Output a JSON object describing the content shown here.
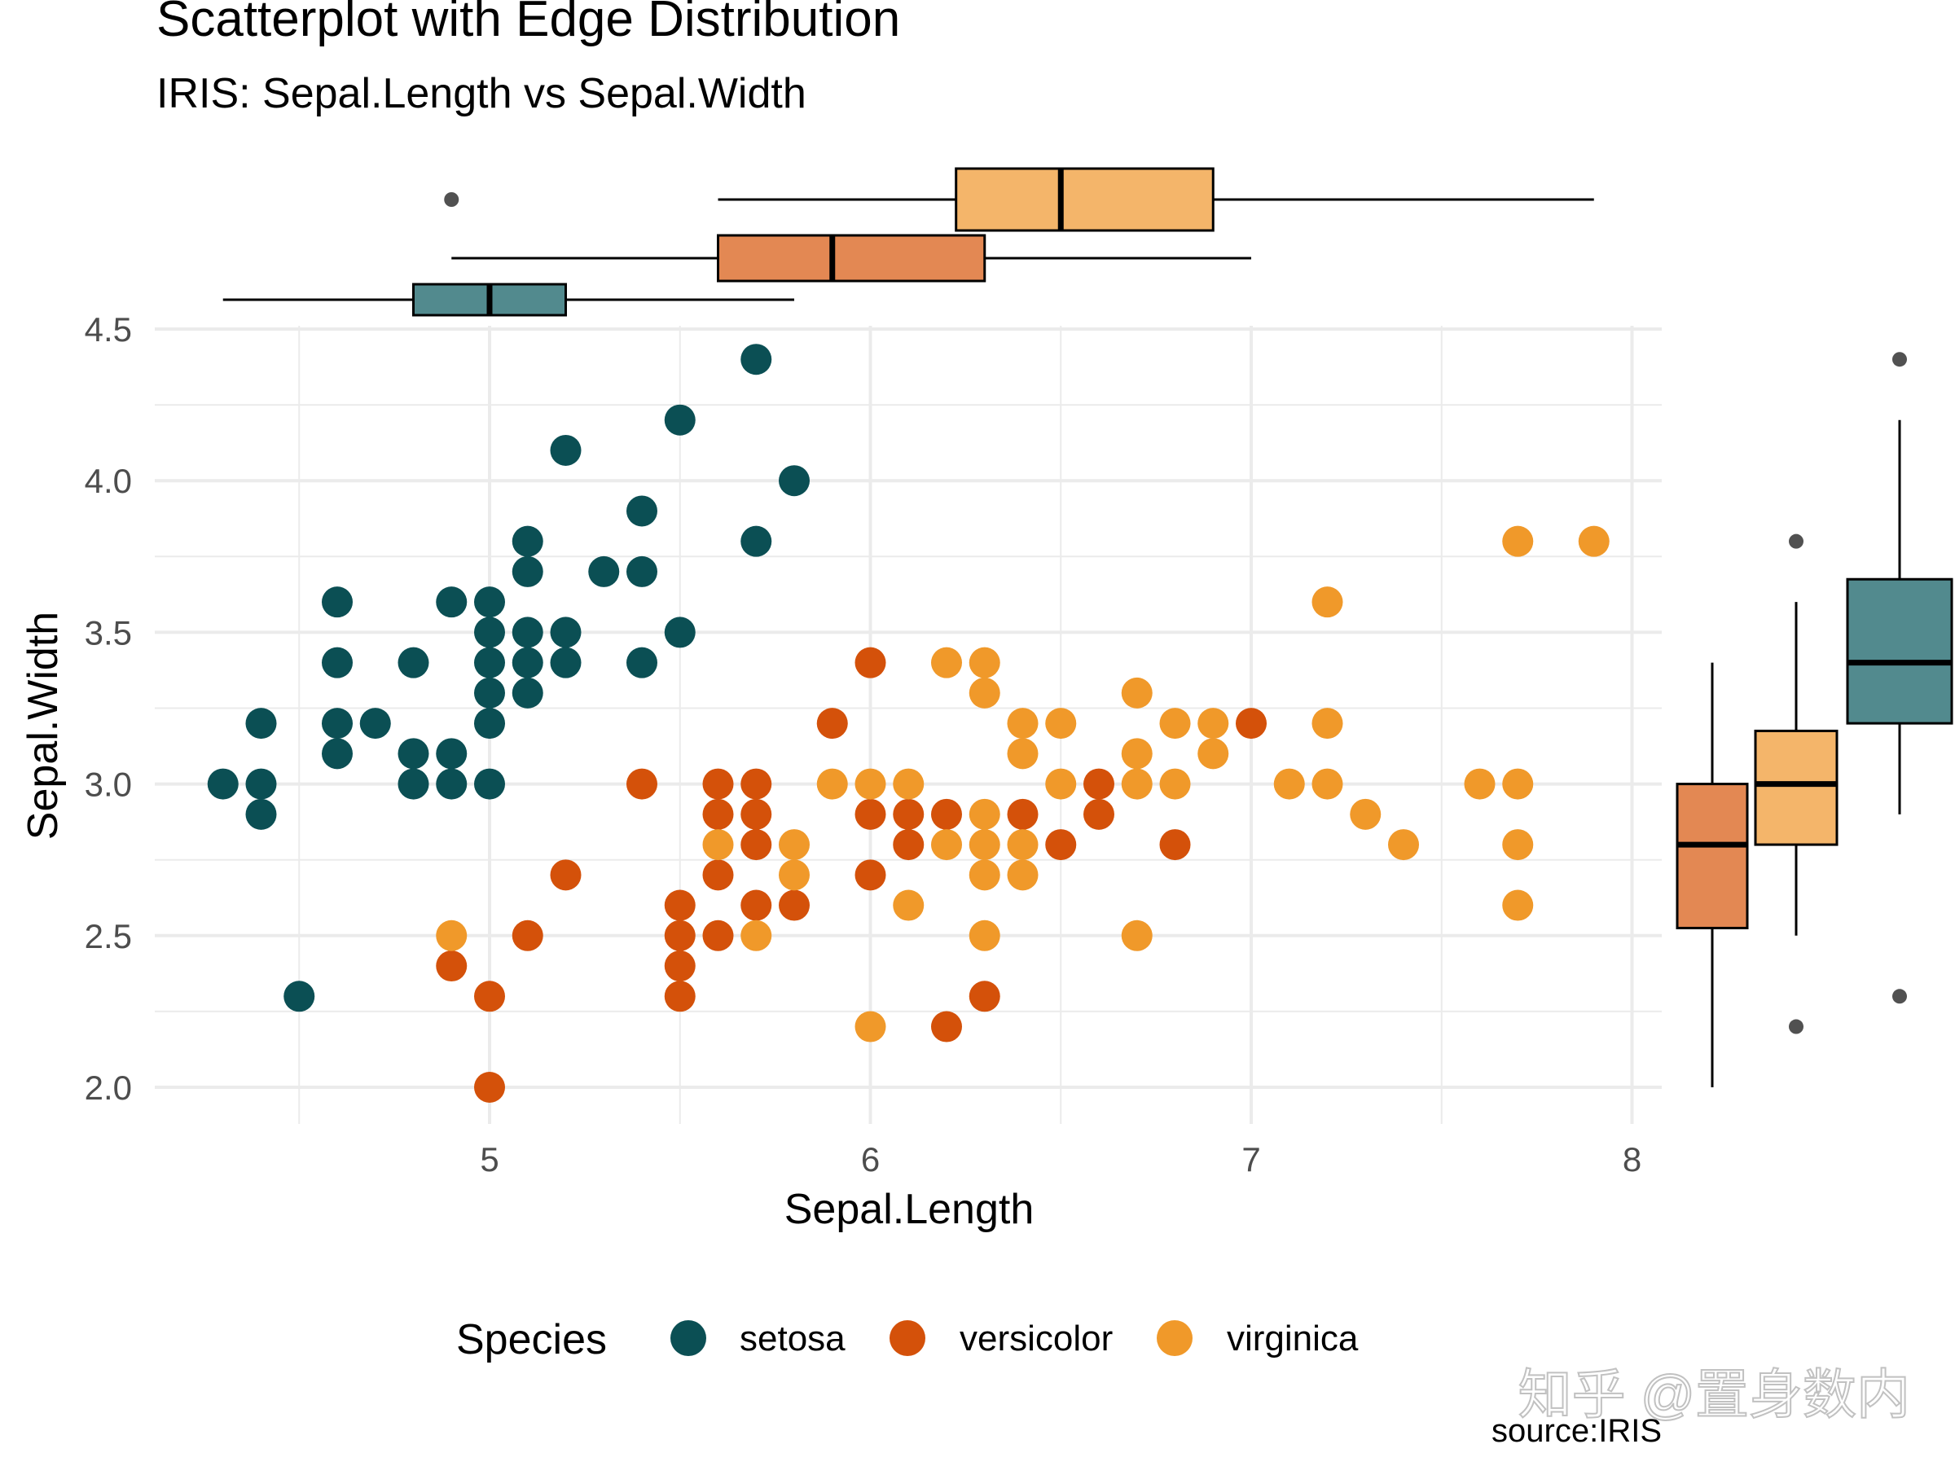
{
  "chart_data": {
    "type": "scatter",
    "title": "Scatterplot with Edge Distribution",
    "subtitle": "IRIS: Sepal.Length vs Sepal.Width",
    "caption": "source:IRIS",
    "watermark": "知乎 @置身数内",
    "xlabel": "Sepal.Length",
    "ylabel": "Sepal.Width",
    "xlim": [
      4.2,
      8.08
    ],
    "ylim": [
      1.9,
      4.6
    ],
    "x_ticks": [
      "5",
      "6",
      "7",
      "8"
    ],
    "y_ticks": [
      "2.0",
      "2.5",
      "3.0",
      "3.5",
      "4.0",
      "4.5"
    ],
    "legend": {
      "title": "Species",
      "position": "bottom",
      "labels": [
        "setosa",
        "versicolor",
        "virginica"
      ]
    },
    "colors": {
      "setosa": "#0b4f54",
      "versicolor": "#d4510a",
      "virginica": "#f0992a",
      "box_setosa": "#528a8e",
      "box_versicolor": "#e38853",
      "box_virginica": "#f4b56a",
      "grid": "#ebebeb",
      "axis_text": "#4d4d4d"
    },
    "series": [
      {
        "name": "setosa",
        "points": [
          [
            4.3,
            3.0
          ],
          [
            4.4,
            3.0
          ],
          [
            4.4,
            3.2
          ],
          [
            4.4,
            2.9
          ],
          [
            4.5,
            2.3
          ],
          [
            4.6,
            3.6
          ],
          [
            4.6,
            3.4
          ],
          [
            4.6,
            3.2
          ],
          [
            4.6,
            3.1
          ],
          [
            4.7,
            3.2
          ],
          [
            4.8,
            3.4
          ],
          [
            4.8,
            3.1
          ],
          [
            4.8,
            3.0
          ],
          [
            4.9,
            3.6
          ],
          [
            4.9,
            3.1
          ],
          [
            4.9,
            3.0
          ],
          [
            5.0,
            3.6
          ],
          [
            5.0,
            3.5
          ],
          [
            5.0,
            3.4
          ],
          [
            5.0,
            3.3
          ],
          [
            5.0,
            3.2
          ],
          [
            5.0,
            3.0
          ],
          [
            5.1,
            3.8
          ],
          [
            5.1,
            3.7
          ],
          [
            5.1,
            3.5
          ],
          [
            5.1,
            3.4
          ],
          [
            5.1,
            3.3
          ],
          [
            5.2,
            4.1
          ],
          [
            5.2,
            3.5
          ],
          [
            5.2,
            3.4
          ],
          [
            5.3,
            3.7
          ],
          [
            5.4,
            3.9
          ],
          [
            5.4,
            3.7
          ],
          [
            5.4,
            3.4
          ],
          [
            5.5,
            4.2
          ],
          [
            5.5,
            3.5
          ],
          [
            5.7,
            4.4
          ],
          [
            5.7,
            3.8
          ],
          [
            5.8,
            4.0
          ]
        ]
      },
      {
        "name": "versicolor",
        "points": [
          [
            4.9,
            2.4
          ],
          [
            5.0,
            2.3
          ],
          [
            5.0,
            2.0
          ],
          [
            5.1,
            2.5
          ],
          [
            5.2,
            2.7
          ],
          [
            5.4,
            3.0
          ],
          [
            5.5,
            2.6
          ],
          [
            5.5,
            2.5
          ],
          [
            5.5,
            2.4
          ],
          [
            5.5,
            2.3
          ],
          [
            5.6,
            3.0
          ],
          [
            5.6,
            2.9
          ],
          [
            5.6,
            2.7
          ],
          [
            5.6,
            2.5
          ],
          [
            5.7,
            3.0
          ],
          [
            5.7,
            2.9
          ],
          [
            5.7,
            2.8
          ],
          [
            5.7,
            2.6
          ],
          [
            5.8,
            2.6
          ],
          [
            5.9,
            3.2
          ],
          [
            6.0,
            3.4
          ],
          [
            6.0,
            2.9
          ],
          [
            6.0,
            2.7
          ],
          [
            6.1,
            2.9
          ],
          [
            6.1,
            2.8
          ],
          [
            6.2,
            2.9
          ],
          [
            6.2,
            2.2
          ],
          [
            6.3,
            2.3
          ],
          [
            6.4,
            2.9
          ],
          [
            6.5,
            2.8
          ],
          [
            6.6,
            3.0
          ],
          [
            6.6,
            2.9
          ],
          [
            6.8,
            2.8
          ],
          [
            7.0,
            3.2
          ]
        ]
      },
      {
        "name": "virginica",
        "points": [
          [
            4.9,
            2.5
          ],
          [
            5.6,
            2.8
          ],
          [
            5.7,
            2.5
          ],
          [
            5.8,
            2.8
          ],
          [
            5.8,
            2.7
          ],
          [
            5.9,
            3.0
          ],
          [
            6.0,
            3.0
          ],
          [
            6.0,
            2.2
          ],
          [
            6.1,
            3.0
          ],
          [
            6.1,
            2.6
          ],
          [
            6.2,
            3.4
          ],
          [
            6.2,
            2.8
          ],
          [
            6.3,
            3.4
          ],
          [
            6.3,
            3.3
          ],
          [
            6.3,
            2.9
          ],
          [
            6.3,
            2.8
          ],
          [
            6.3,
            2.7
          ],
          [
            6.3,
            2.5
          ],
          [
            6.4,
            3.2
          ],
          [
            6.4,
            3.1
          ],
          [
            6.4,
            2.8
          ],
          [
            6.4,
            2.7
          ],
          [
            6.5,
            3.2
          ],
          [
            6.5,
            3.0
          ],
          [
            6.7,
            3.3
          ],
          [
            6.7,
            3.1
          ],
          [
            6.7,
            3.0
          ],
          [
            6.7,
            2.5
          ],
          [
            6.8,
            3.2
          ],
          [
            6.8,
            3.0
          ],
          [
            6.9,
            3.2
          ],
          [
            6.9,
            3.1
          ],
          [
            7.1,
            3.0
          ],
          [
            7.2,
            3.6
          ],
          [
            7.2,
            3.2
          ],
          [
            7.2,
            3.0
          ],
          [
            7.3,
            2.9
          ],
          [
            7.4,
            2.8
          ],
          [
            7.6,
            3.0
          ],
          [
            7.7,
            3.8
          ],
          [
            7.7,
            3.0
          ],
          [
            7.7,
            2.8
          ],
          [
            7.7,
            2.6
          ],
          [
            7.9,
            3.8
          ]
        ]
      }
    ],
    "top_boxplots": [
      {
        "name": "virginica",
        "min": 5.6,
        "q1": 6.225,
        "median": 6.5,
        "q3": 6.9,
        "max": 7.9,
        "outliers": [
          4.9
        ]
      },
      {
        "name": "versicolor",
        "min": 4.9,
        "q1": 5.6,
        "median": 5.9,
        "q3": 6.3,
        "max": 7.0,
        "outliers": []
      },
      {
        "name": "setosa",
        "min": 4.3,
        "q1": 4.8,
        "median": 5.0,
        "q3": 5.2,
        "max": 5.8,
        "outliers": []
      }
    ],
    "right_boxplots": [
      {
        "name": "versicolor",
        "min": 2.0,
        "q1": 2.525,
        "median": 2.8,
        "q3": 3.0,
        "max": 3.4,
        "outliers": []
      },
      {
        "name": "virginica",
        "min": 2.5,
        "q1": 2.8,
        "median": 3.0,
        "q3": 3.175,
        "max": 3.6,
        "outliers": [
          3.8,
          2.2
        ]
      },
      {
        "name": "setosa",
        "min": 2.9,
        "q1": 3.2,
        "median": 3.4,
        "q3": 3.675,
        "max": 4.2,
        "outliers": [
          4.4,
          2.3
        ]
      }
    ]
  }
}
